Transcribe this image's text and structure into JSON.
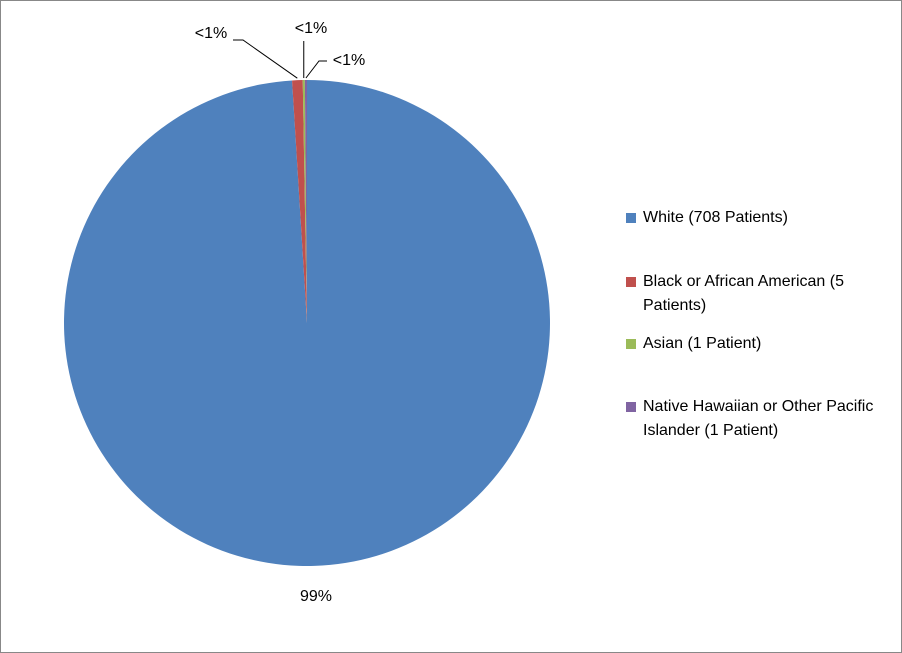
{
  "chart_data": {
    "type": "pie",
    "categories": [
      "White (708 Patients)",
      "Black or African American (5 Patients)",
      "Asian (1 Patient)",
      "Native Hawaiian or Other Pacific Islander (1 Patient)"
    ],
    "values": [
      99.02,
      0.7,
      0.14,
      0.14
    ],
    "value_labels": [
      "99%",
      "<1%",
      "<1%",
      "<1%"
    ],
    "colors": [
      "#4f81bd",
      "#c0504d",
      "#9bbb59",
      "#8064a2"
    ],
    "legend": "right"
  }
}
